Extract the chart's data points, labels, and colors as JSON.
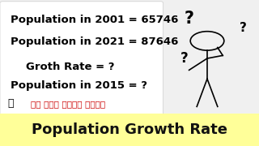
{
  "bg_color": "#f0f0f0",
  "box_color": "#ffffff",
  "bottom_bar_color": "#ffff99",
  "line1": "Population in 2001 = 65746",
  "line2": "Population in 2021 = 87646",
  "line3": "Groth Rate = ?",
  "line4": "Population in 2015 = ?",
  "hindi_text": "एक बार जरूर देखे",
  "bottom_text": "Population Growth Rate",
  "text_color_black": "#000000",
  "text_color_red": "#cc0000",
  "bottom_text_color": "#111111",
  "font_size_main": 9.5,
  "font_size_bottom": 13,
  "font_size_hindi": 7.5
}
